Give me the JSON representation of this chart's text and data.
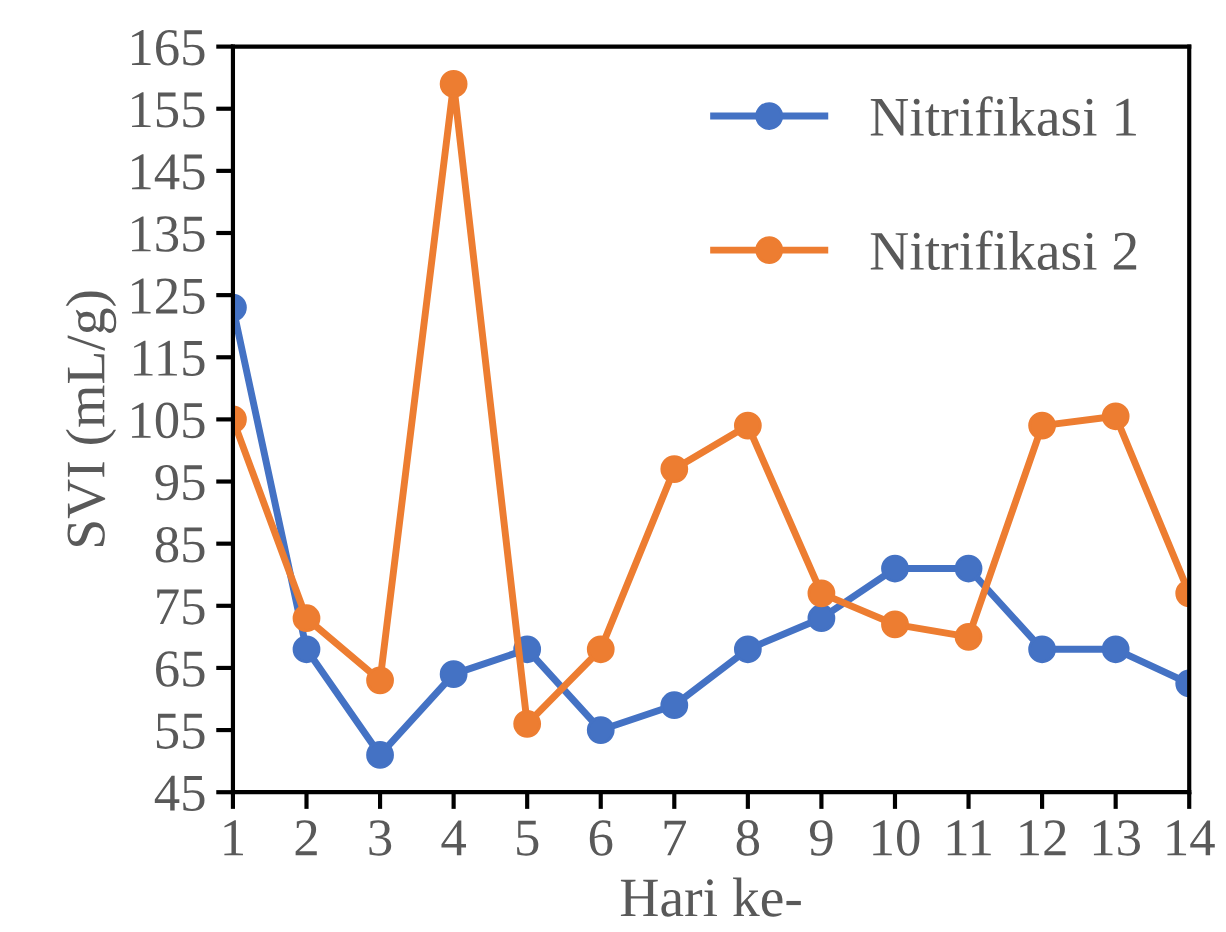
{
  "chart_data": {
    "type": "line",
    "xlabel": "Hari ke-",
    "ylabel": "SVI (mL/g)",
    "categories": [
      "1",
      "2",
      "3",
      "4",
      "5",
      "6",
      "7",
      "8",
      "9",
      "10",
      "11",
      "12",
      "13",
      "14"
    ],
    "series": [
      {
        "name": "Nitrifikasi 1",
        "color": "#4472c4",
        "values": [
          123,
          68,
          51,
          64,
          68,
          55,
          59,
          68,
          73,
          81,
          81,
          68,
          68,
          62.5
        ]
      },
      {
        "name": "Nitrifikasi 2",
        "color": "#ed7d31",
        "values": [
          105,
          73,
          63,
          159,
          56,
          68,
          97,
          104,
          77,
          72,
          70,
          104,
          105.5,
          77
        ]
      }
    ],
    "ylim": [
      45,
      165
    ],
    "yticks": [
      45,
      55,
      65,
      75,
      85,
      95,
      105,
      115,
      125,
      135,
      145,
      155,
      165
    ],
    "grid": false,
    "legend": "top right",
    "marker": "circle",
    "line_style": "solid"
  }
}
